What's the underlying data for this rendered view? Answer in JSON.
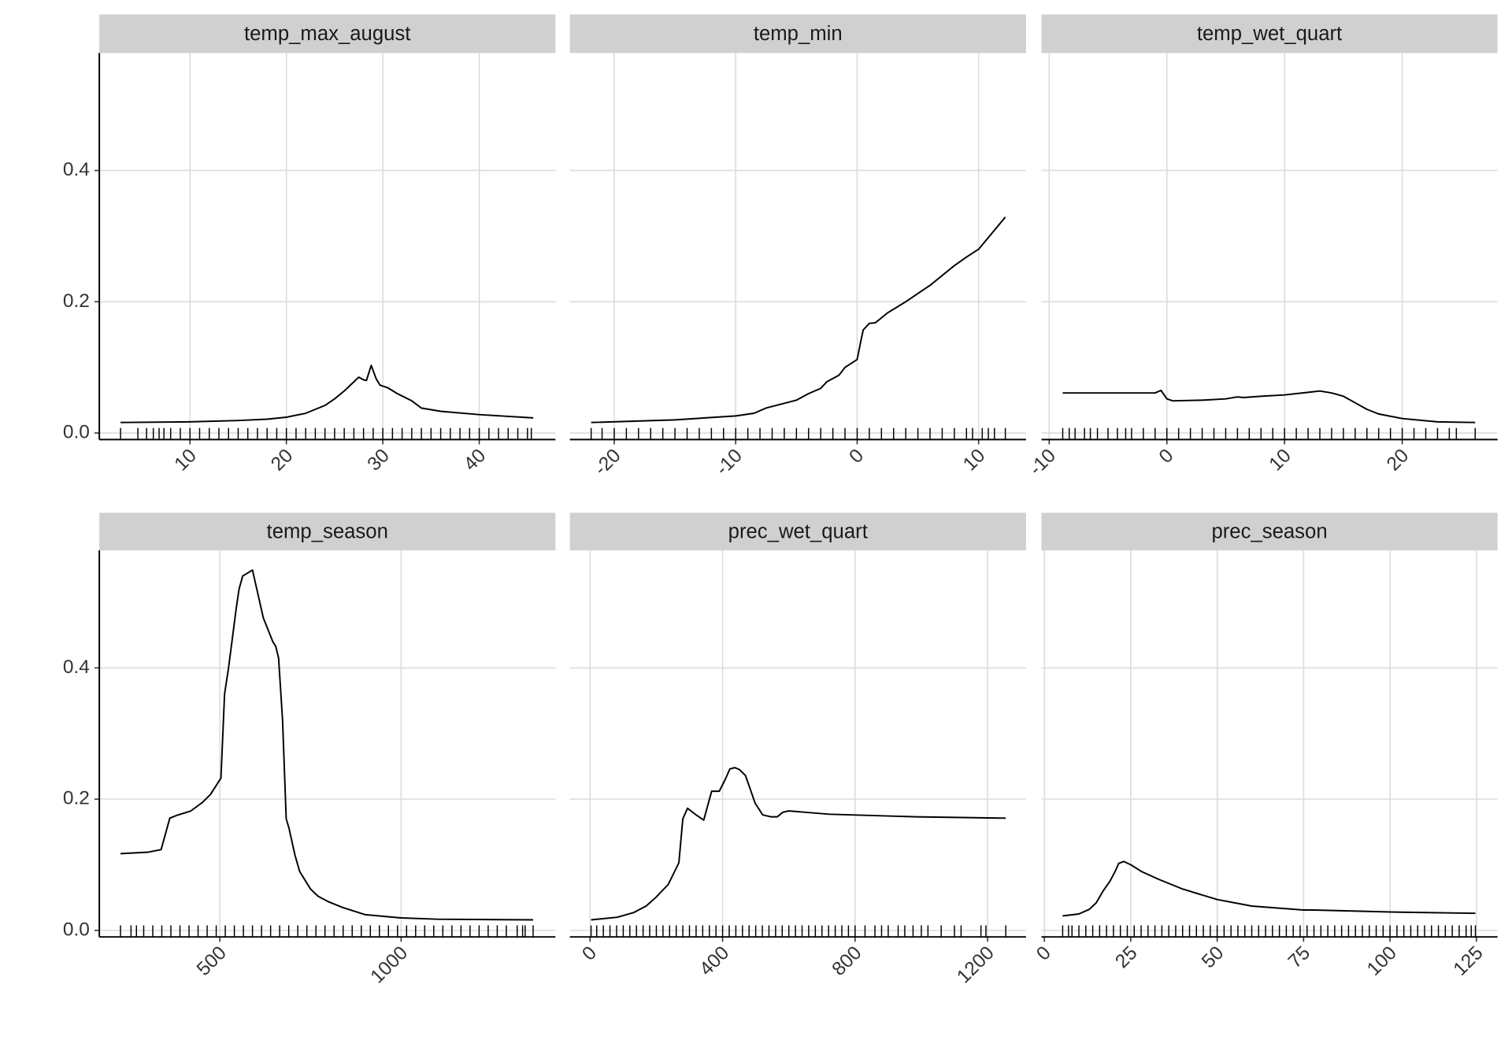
{
  "chart_data": [
    {
      "type": "line",
      "title": "temp_max_august",
      "color": "#000000",
      "grid": true,
      "xlim": [
        0.6,
        47.9
      ],
      "xticks": [
        10,
        20,
        30,
        40
      ],
      "ylim": [
        -0.01,
        0.579
      ],
      "yticks": [
        {
          "value": 0,
          "label": "0.0"
        },
        0.2,
        0.4
      ],
      "x": [
        2.8,
        10,
        15,
        18,
        20,
        22,
        24,
        25,
        26,
        27,
        27.5,
        28,
        28.3,
        28.8,
        29.3,
        29.7,
        30.5,
        31.5,
        33,
        34,
        36,
        40,
        45.6
      ],
      "values": [
        0.016,
        0.017,
        0.019,
        0.021,
        0.024,
        0.03,
        0.042,
        0.052,
        0.064,
        0.078,
        0.085,
        0.081,
        0.08,
        0.103,
        0.083,
        0.073,
        0.069,
        0.06,
        0.049,
        0.038,
        0.033,
        0.028,
        0.023
      ],
      "rug": [
        2.8,
        4.6,
        5.5,
        6.2,
        6.8,
        7.3,
        8,
        9,
        10,
        11,
        12,
        13,
        14,
        15,
        16,
        17,
        18,
        19,
        20,
        21,
        22,
        23,
        24,
        25,
        26,
        27,
        28,
        29,
        30,
        31,
        32,
        33,
        34,
        35,
        36,
        37,
        38,
        39,
        40,
        41,
        42,
        43,
        44,
        45,
        45.4
      ]
    },
    {
      "type": "line",
      "title": "temp_min",
      "color": "#000000",
      "grid": true,
      "xlim": [
        -23.65,
        13.9
      ],
      "xticks": [
        -20,
        -10,
        0,
        10
      ],
      "ylim": [
        -0.01,
        0.579
      ],
      "yticks": [
        {
          "value": 0,
          "label": "0.0"
        },
        0.2,
        0.4
      ],
      "x": [
        -21.9,
        -15,
        -10,
        -8.5,
        -7.5,
        -5,
        -4,
        -3,
        -2.5,
        -1.5,
        -1,
        0,
        0.3,
        0.5,
        1,
        1.5,
        2.5,
        4,
        6,
        8,
        9,
        10,
        12.2
      ],
      "values": [
        0.016,
        0.02,
        0.026,
        0.03,
        0.038,
        0.05,
        0.06,
        0.068,
        0.078,
        0.088,
        0.1,
        0.112,
        0.14,
        0.157,
        0.167,
        0.168,
        0.183,
        0.2,
        0.225,
        0.255,
        0.268,
        0.28,
        0.329
      ],
      "rug": [
        -21.9,
        -21,
        -20,
        -19,
        -18,
        -17,
        -16,
        -15,
        -14,
        -13,
        -12,
        -11,
        -10,
        -9,
        -8,
        -7,
        -6,
        -5,
        -4,
        -3,
        -2,
        -1,
        0,
        1,
        2,
        3,
        4,
        5,
        6,
        7,
        8,
        9,
        9.5,
        10.3,
        10.8,
        11.3,
        12.2
      ]
    },
    {
      "type": "line",
      "title": "temp_wet_quart",
      "color": "#000000",
      "grid": true,
      "xlim": [
        -10.66,
        28.1
      ],
      "xticks": [
        -10,
        0,
        10,
        20
      ],
      "ylim": [
        -0.01,
        0.579
      ],
      "yticks": [
        {
          "value": 0,
          "label": "0.0"
        },
        0.2,
        0.4
      ],
      "x": [
        -8.85,
        -1,
        -0.5,
        0,
        0.5,
        3,
        5,
        6,
        6.5,
        8,
        10,
        12,
        13,
        14,
        15,
        16,
        17,
        18,
        20,
        23,
        26.2
      ],
      "values": [
        0.061,
        0.061,
        0.065,
        0.052,
        0.049,
        0.05,
        0.052,
        0.055,
        0.054,
        0.056,
        0.058,
        0.062,
        0.064,
        0.061,
        0.056,
        0.046,
        0.036,
        0.029,
        0.022,
        0.017,
        0.016
      ],
      "rug": [
        -8.85,
        -8.3,
        -7.8,
        -7,
        -6.5,
        -5.9,
        -5,
        -4.2,
        -3.5,
        -3,
        -2,
        -1,
        0,
        1,
        2,
        3,
        4,
        5,
        6,
        7,
        8,
        9,
        10,
        11,
        12,
        13,
        14,
        15,
        16,
        17,
        18,
        19,
        20,
        21,
        22,
        23,
        24,
        24.6,
        26.2
      ]
    },
    {
      "type": "line",
      "title": "temp_season",
      "color": "#000000",
      "grid": true,
      "xlim": [
        167.6,
        1425.5
      ],
      "xticks": [
        500,
        1000
      ],
      "ylim": [
        -0.01,
        0.579
      ],
      "yticks": [
        {
          "value": 0,
          "label": "0.0"
        },
        0.2,
        0.4
      ],
      "x": [
        226,
        300,
        338,
        362,
        380,
        420,
        452,
        474,
        503,
        513,
        524,
        545,
        553,
        563,
        590,
        620,
        646,
        654,
        662,
        673,
        683,
        691,
        707,
        720,
        731,
        750,
        771,
        798,
        838,
        900,
        1000,
        1100,
        1364
      ],
      "values": [
        0.117,
        0.119,
        0.123,
        0.171,
        0.175,
        0.182,
        0.195,
        0.207,
        0.232,
        0.36,
        0.4,
        0.49,
        0.52,
        0.54,
        0.549,
        0.476,
        0.44,
        0.433,
        0.415,
        0.32,
        0.17,
        0.155,
        0.115,
        0.09,
        0.08,
        0.063,
        0.052,
        0.044,
        0.035,
        0.024,
        0.019,
        0.017,
        0.016
      ],
      "rug": [
        226,
        255,
        270,
        290,
        315,
        340,
        365,
        390,
        415,
        440,
        465,
        490,
        515,
        540,
        565,
        590,
        615,
        640,
        665,
        690,
        715,
        740,
        765,
        790,
        815,
        840,
        865,
        890,
        915,
        940,
        965,
        990,
        1015,
        1040,
        1065,
        1090,
        1115,
        1140,
        1165,
        1190,
        1215,
        1240,
        1265,
        1290,
        1320,
        1335,
        1342,
        1364
      ]
    },
    {
      "type": "line",
      "title": "prec_wet_quart",
      "color": "#000000",
      "grid": true,
      "xlim": [
        -61,
        1316
      ],
      "xticks": [
        0,
        400,
        800,
        1200
      ],
      "ylim": [
        -0.01,
        0.579
      ],
      "yticks": [
        {
          "value": 0,
          "label": "0.0"
        },
        0.2,
        0.4
      ],
      "x": [
        3,
        82,
        131,
        169,
        198,
        236,
        268,
        280,
        294,
        320,
        343,
        367,
        390,
        408,
        422,
        437,
        451,
        469,
        483,
        498,
        521,
        547,
        565,
        582,
        600,
        722,
        984,
        1255
      ],
      "values": [
        0.016,
        0.02,
        0.027,
        0.037,
        0.05,
        0.07,
        0.103,
        0.17,
        0.186,
        0.176,
        0.168,
        0.212,
        0.212,
        0.23,
        0.246,
        0.248,
        0.245,
        0.236,
        0.216,
        0.194,
        0.176,
        0.173,
        0.173,
        0.18,
        0.182,
        0.177,
        0.173,
        0.171
      ],
      "rug": [
        3,
        20,
        40,
        60,
        80,
        100,
        120,
        140,
        160,
        180,
        200,
        220,
        240,
        260,
        280,
        300,
        320,
        340,
        360,
        380,
        400,
        420,
        440,
        460,
        480,
        500,
        520,
        540,
        560,
        580,
        600,
        620,
        640,
        660,
        680,
        700,
        720,
        740,
        760,
        780,
        800,
        830,
        860,
        880,
        900,
        930,
        950,
        975,
        1000,
        1020,
        1060,
        1100,
        1120,
        1180,
        1195,
        1255
      ]
    },
    {
      "type": "line",
      "title": "prec_season",
      "color": "#000000",
      "grid": true,
      "xlim": [
        -0.84,
        131.1
      ],
      "xticks": [
        0,
        25,
        50,
        75,
        100,
        125
      ],
      "ylim": [
        -0.01,
        0.579
      ],
      "yticks": [
        {
          "value": 0,
          "label": "0.0"
        },
        0.2,
        0.4
      ],
      "x": [
        5.3,
        10,
        13,
        15,
        17,
        19,
        20.5,
        21.5,
        23,
        25,
        28,
        33,
        40,
        50,
        60,
        75,
        78,
        100,
        124.7
      ],
      "values": [
        0.022,
        0.025,
        0.032,
        0.042,
        0.06,
        0.075,
        0.09,
        0.102,
        0.105,
        0.1,
        0.09,
        0.078,
        0.063,
        0.047,
        0.037,
        0.031,
        0.031,
        0.028,
        0.026
      ],
      "rug": [
        5.3,
        7,
        8,
        10,
        12,
        14,
        16,
        18,
        20,
        22,
        24,
        26,
        28,
        30,
        32,
        34,
        36,
        38,
        40,
        42,
        44,
        46,
        48,
        50,
        52,
        54,
        56,
        58,
        60,
        62,
        64,
        66,
        68,
        70,
        72,
        74,
        76,
        78,
        80,
        82,
        84,
        86,
        88,
        90,
        92,
        94,
        96,
        98,
        100,
        102,
        104,
        106,
        108,
        110,
        112,
        114,
        116,
        118,
        120,
        122,
        123.5,
        124.7
      ]
    }
  ]
}
